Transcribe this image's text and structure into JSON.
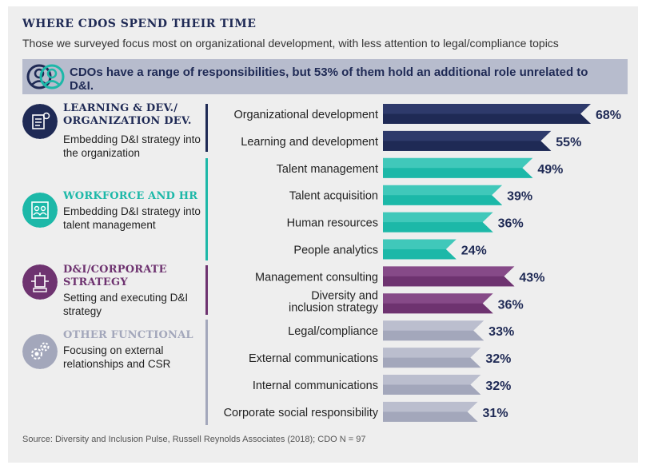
{
  "header": {
    "title": "WHERE CDOS SPEND THEIR TIME",
    "subtitle": "Those we surveyed focus most on organizational development, with less attention to legal/compliance topics"
  },
  "banner": {
    "text": "CDOs have a range of responsibilities, but 53% of them hold an additional role unrelated to D&I.",
    "icon": "people-icon"
  },
  "groups": [
    {
      "title": "LEARNING & DEV./ ORGANIZATION DEV.",
      "desc": "Embedding D&I strategy into the organization",
      "color": "#1f2a55",
      "icon": "learning-icon"
    },
    {
      "title": "WORKFORCE AND HR",
      "desc": "Embedding D&I strategy into talent management",
      "color": "#1cb8a8",
      "icon": "workforce-icon"
    },
    {
      "title": "D&I/CORPORATE STRATEGY",
      "desc": "Setting and executing D&I strategy",
      "color": "#6e3370",
      "icon": "strategy-icon"
    },
    {
      "title": "OTHER FUNCTIONAL",
      "desc": "Focusing on external relationships and CSR",
      "color": "#a3a7bb",
      "icon": "gears-icon"
    }
  ],
  "chart_data": {
    "type": "bar",
    "orientation": "horizontal",
    "categories": [
      "Organizational development",
      "Learning and development",
      "Talent management",
      "Talent acquisition",
      "Human resources",
      "People analytics",
      "Management consulting",
      "Diversity and inclusion strategy",
      "Legal/compliance",
      "External communications",
      "Internal communications",
      "Corporate social responsibility"
    ],
    "values": [
      68,
      55,
      49,
      39,
      36,
      24,
      43,
      36,
      33,
      32,
      32,
      31
    ],
    "value_labels": [
      "68%",
      "55%",
      "49%",
      "39%",
      "36%",
      "24%",
      "43%",
      "36%",
      "33%",
      "32%",
      "32%",
      "31%"
    ],
    "group_index": [
      0,
      0,
      1,
      1,
      1,
      1,
      2,
      2,
      3,
      3,
      3,
      3
    ],
    "xlim": [
      0,
      68
    ]
  },
  "footer": {
    "source": "Source: Diversity and Inclusion Pulse, Russell Reynolds Associates (2018); CDO N = 97"
  }
}
